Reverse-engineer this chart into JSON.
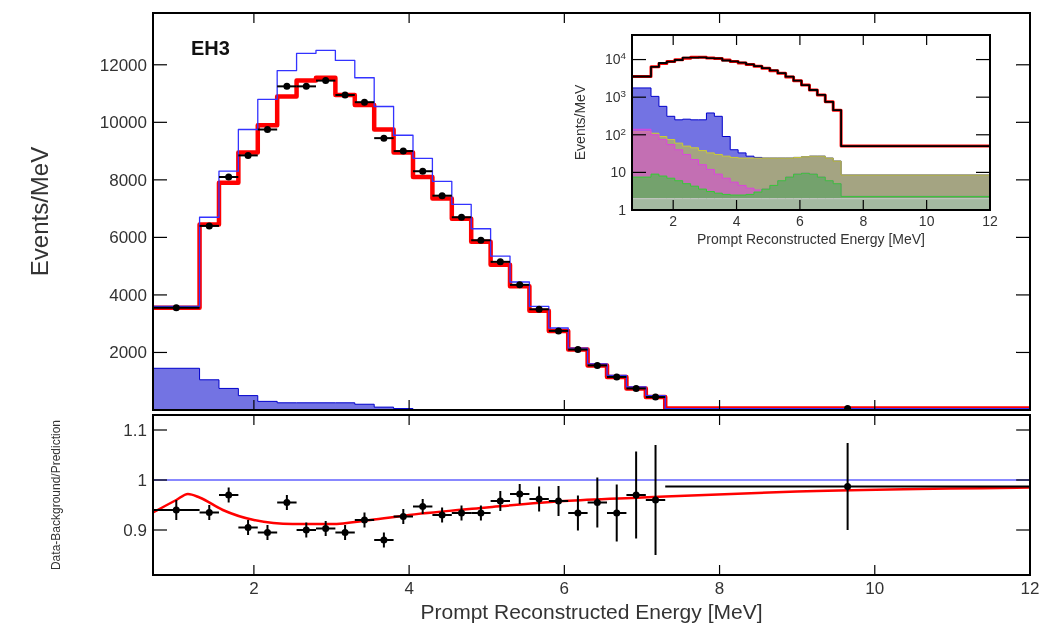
{
  "chart_data": [
    {
      "type": "step",
      "ylabel": "Events/MeV",
      "annotations": [
        "EH3"
      ],
      "xlim": [
        0.7,
        12
      ],
      "xticks": [
        2,
        4,
        6,
        8,
        10,
        12
      ],
      "ylim": [
        0,
        13800
      ],
      "yticks": [
        2000,
        4000,
        6000,
        8000,
        10000,
        12000
      ],
      "tick_labels": "y",
      "x": [
        0.7,
        1.3,
        1.55,
        1.8,
        2.05,
        2.3,
        2.55,
        2.8,
        3.05,
        3.3,
        3.55,
        3.8,
        4.05,
        4.3,
        4.55,
        4.8,
        5.05,
        5.3,
        5.55,
        5.8,
        6.05,
        6.3,
        6.55,
        6.8,
        7.05,
        7.3,
        12
      ],
      "series": [
        {
          "type": "area",
          "color": "#0000cc",
          "values": [
            1450,
            1050,
            750,
            500,
            300,
            250,
            250,
            250,
            250,
            200,
            100,
            50,
            0,
            0,
            0,
            0,
            0,
            0,
            0,
            0,
            0,
            0,
            0,
            0,
            0,
            0,
            0
          ]
        },
        {
          "color": "#ff0000",
          "values": [
            3550,
            6450,
            7900,
            8950,
            9900,
            10900,
            11450,
            11550,
            10950,
            10600,
            9750,
            8950,
            8100,
            7350,
            6650,
            5850,
            5050,
            4300,
            3450,
            2750,
            2100,
            1550,
            1150,
            750,
            450,
            50,
            50
          ]
        },
        {
          "color": "#3333ff",
          "values": [
            3600,
            6700,
            8300,
            9750,
            10800,
            11800,
            12400,
            12500,
            12150,
            11550,
            10550,
            9550,
            8750,
            7950,
            7150,
            6300,
            5350,
            4450,
            3600,
            2850,
            2150,
            1600,
            1200,
            800,
            500,
            50,
            50
          ]
        },
        {
          "type": "scatter",
          "marker": "circle",
          "color": "#000000",
          "x": [
            1.0,
            1.425,
            1.675,
            1.925,
            2.175,
            2.425,
            2.675,
            2.925,
            3.175,
            3.425,
            3.675,
            3.925,
            4.175,
            4.425,
            4.675,
            4.925,
            5.175,
            5.425,
            5.675,
            5.925,
            6.175,
            6.425,
            6.675,
            6.925,
            7.175,
            9.65
          ],
          "values": [
            3550,
            6400,
            8100,
            8850,
            9750,
            11250,
            11250,
            11450,
            10950,
            10700,
            9450,
            9000,
            8300,
            7450,
            6700,
            5900,
            5150,
            4350,
            3500,
            2750,
            2100,
            1550,
            1150,
            750,
            450,
            50
          ],
          "xerrors": [
            0.3,
            0.125,
            0.125,
            0.125,
            0.125,
            0.125,
            0.125,
            0.125,
            0.125,
            0.125,
            0.125,
            0.125,
            0.125,
            0.125,
            0.125,
            0.125,
            0.125,
            0.125,
            0.125,
            0.125,
            0.125,
            0.125,
            0.125,
            0.125,
            0.125,
            null
          ]
        }
      ]
    },
    {
      "type": "step",
      "xlabel": "Prompt Reconstructed Energy [MeV]",
      "ylabel": "Events/MeV",
      "log": "y",
      "xlim": [
        0.7,
        12
      ],
      "xticks": [
        2,
        4,
        6,
        8,
        10,
        12
      ],
      "ylim": [
        1,
        45000
      ],
      "yticks": [
        1,
        10,
        {
          "value": 100,
          "label": "10$^{2}$"
        },
        {
          "value": 1000,
          "label": "10$^{3}$"
        },
        {
          "value": 10000,
          "label": "10$^{4}$"
        }
      ],
      "x": [
        0.7,
        1.3,
        1.55,
        1.8,
        2.05,
        2.3,
        2.55,
        2.8,
        3.05,
        3.3,
        3.55,
        3.8,
        4.05,
        4.3,
        4.55,
        4.8,
        5.05,
        5.3,
        5.55,
        5.8,
        6.05,
        6.3,
        6.55,
        6.8,
        7.05,
        7.3,
        12
      ],
      "series": [
        {
          "type": "area",
          "color": "#0000cc",
          "values": [
            1760,
            1050,
            570,
            310,
            250,
            260,
            250,
            250,
            380,
            310,
            90,
            40,
            33,
            27,
            25,
            24,
            24,
            24,
            24,
            25,
            26,
            27,
            27,
            24,
            20,
            8.5,
            8.5
          ]
        },
        {
          "type": "area",
          "color": "#cccc33",
          "values": [
            120,
            110,
            90,
            75,
            60,
            50,
            45,
            38,
            33,
            30,
            27,
            25,
            24,
            24,
            24,
            24,
            24,
            24,
            24,
            25,
            26,
            27,
            27,
            24,
            20,
            8.5,
            8.5
          ]
        },
        {
          "type": "area",
          "color": "#dd44dd",
          "values": [
            140,
            100,
            75,
            55,
            40,
            30,
            22,
            16,
            12,
            9,
            7,
            5.5,
            4.5,
            3.8,
            3.4,
            3.6,
            4.5,
            6,
            7.5,
            9,
            9.5,
            9,
            7.5,
            6,
            5,
            2.3,
            2.3
          ]
        },
        {
          "type": "area",
          "color": "#33cc33",
          "values": [
            7.5,
            9,
            8,
            7,
            6,
            5,
            4.3,
            3.6,
            3.1,
            2.8,
            2.6,
            2.5,
            2.5,
            2.6,
            3,
            3.6,
            4.5,
            6,
            7.5,
            9,
            9.5,
            9,
            7.5,
            6,
            5,
            2.3,
            2.3
          ]
        },
        {
          "type": "area",
          "color": "#cccccc",
          "values": [
            2,
            2,
            2,
            2,
            2,
            2,
            2,
            2,
            2,
            2,
            2,
            2,
            2,
            2,
            2,
            2,
            2,
            2,
            2,
            2,
            2,
            2,
            2,
            2,
            2,
            2,
            2
          ]
        },
        {
          "color": "#ff0000",
          "values": [
            3550,
            6450,
            7900,
            8950,
            9900,
            10900,
            11450,
            11550,
            10950,
            10600,
            9750,
            8950,
            8100,
            7350,
            6650,
            5850,
            5050,
            4300,
            3450,
            2750,
            2100,
            1550,
            1150,
            750,
            450,
            50,
            50
          ]
        },
        {
          "color": "#000000",
          "values": [
            3550,
            6400,
            8100,
            8850,
            9750,
            11250,
            11250,
            11450,
            10950,
            10700,
            9450,
            9000,
            8300,
            7450,
            6700,
            5900,
            5150,
            4350,
            3500,
            2750,
            2100,
            1550,
            1150,
            750,
            450,
            50,
            50
          ]
        }
      ]
    },
    {
      "type": "scatter",
      "xlabel": "Prompt Reconstructed Energy [MeV]",
      "ylabel": "Data-Background/Prediction",
      "xlim": [
        0.7,
        12
      ],
      "xticks": [
        2,
        4,
        6,
        8,
        10,
        12
      ],
      "ylim": [
        0.81,
        1.13
      ],
      "yticks": [
        0.9,
        1,
        1.1
      ],
      "ref_lines": [
        {
          "axis": "y",
          "value": 1,
          "color": "#8888ff"
        }
      ],
      "series": [
        {
          "type": "line",
          "color": "#ff0000",
          "x": [
            0.7,
            1.0,
            1.15,
            1.3,
            1.6,
            2.0,
            2.5,
            3.0,
            3.5,
            4.0,
            5.0,
            6.0,
            7.0,
            7.3,
            9,
            12
          ],
          "values": [
            0.935,
            0.96,
            0.972,
            0.965,
            0.94,
            0.92,
            0.912,
            0.912,
            0.92,
            0.93,
            0.945,
            0.958,
            0.965,
            0.967,
            0.977,
            0.985
          ]
        },
        {
          "marker": "circle",
          "color": "#000000",
          "x": [
            1.0,
            1.425,
            1.675,
            1.925,
            2.175,
            2.425,
            2.675,
            2.925,
            3.175,
            3.425,
            3.675,
            3.925,
            4.175,
            4.425,
            4.675,
            4.925,
            5.175,
            5.425,
            5.675,
            5.925,
            6.175,
            6.425,
            6.675,
            6.925,
            7.175,
            9.65
          ],
          "values": [
            0.94,
            0.935,
            0.97,
            0.905,
            0.895,
            0.955,
            0.9,
            0.903,
            0.895,
            0.92,
            0.88,
            0.927,
            0.947,
            0.93,
            0.934,
            0.934,
            0.958,
            0.972,
            0.962,
            0.958,
            0.934,
            0.955,
            0.934,
            0.97,
            0.96,
            0.987
          ],
          "errors": [
            0.02,
            0.015,
            0.015,
            0.015,
            0.015,
            0.015,
            0.015,
            0.015,
            0.015,
            0.015,
            0.015,
            0.015,
            0.015,
            0.015,
            0.015,
            0.015,
            0.02,
            0.02,
            0.025,
            0.03,
            0.035,
            0.05,
            0.057,
            0.087,
            0.11,
            0.087
          ],
          "xerrors": [
            0.3,
            0.125,
            0.125,
            0.125,
            0.125,
            0.125,
            0.125,
            0.125,
            0.125,
            0.125,
            0.125,
            0.125,
            0.125,
            0.125,
            0.125,
            0.125,
            0.125,
            0.125,
            0.125,
            0.125,
            0.125,
            0.125,
            0.125,
            0.125,
            0.125,
            2.35
          ]
        }
      ]
    }
  ]
}
